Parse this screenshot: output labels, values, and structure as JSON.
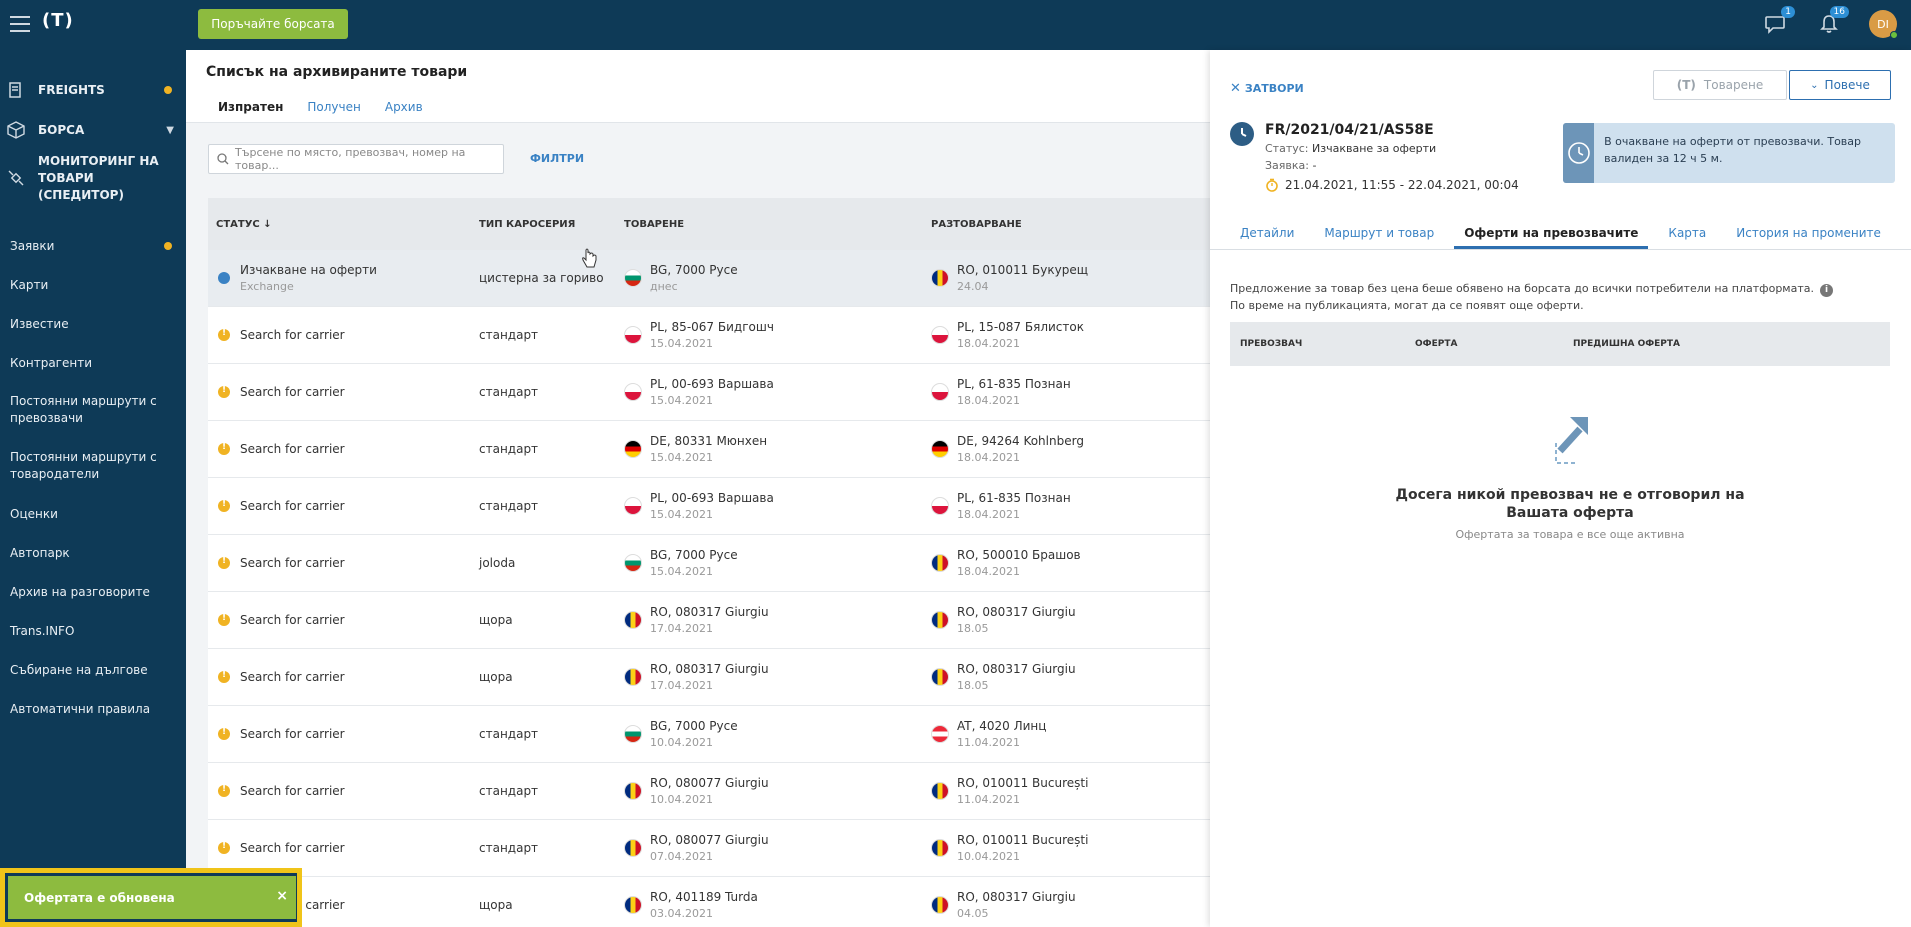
{
  "topbar": {
    "logo": "(T)",
    "action_button": "Поръчайте борсата",
    "messages_badge": "1",
    "notifications_badge": "16",
    "avatar_initials": "DI"
  },
  "sidebar": {
    "primary": [
      {
        "label": "FREIGHTS",
        "has_dot": true
      },
      {
        "label": "БОРСА",
        "has_chevron": true
      },
      {
        "label": "МОНИТОРИНГ НА ТОВАРИ (СПЕДИТОР)"
      }
    ],
    "links": [
      {
        "label": "Заявки",
        "has_dot": true
      },
      {
        "label": "Карти"
      },
      {
        "label": "Известие"
      },
      {
        "label": "Контрагенти"
      },
      {
        "label": "Постоянни маршрути с превозвачи"
      },
      {
        "label": "Постоянни маршрути с товародатели"
      },
      {
        "label": "Оценки"
      },
      {
        "label": "Автопарк"
      },
      {
        "label": "Архив на разговорите"
      },
      {
        "label": "Trans.INFO"
      },
      {
        "label": "Събиране на дългове"
      },
      {
        "label": "Автоматични правила"
      }
    ]
  },
  "main": {
    "title": "Списък на архивираните товари",
    "tabs": [
      "Изпратен",
      "Получен",
      "Архив"
    ],
    "search_placeholder": "Търсене по място, превозвач, номер на товар...",
    "filters_label": "ФИЛТРИ",
    "columns": [
      "СТАТУС ↓",
      "ТИП КАРОСЕРИЯ",
      "ТОВАРЕНЕ",
      "РАЗТОВАРВАНЕ"
    ],
    "rows": [
      {
        "status": "Изчакване на оферти",
        "status_sub": "Exchange",
        "status_type": "clock",
        "body": "цистерна за гориво",
        "load_flag": "bg",
        "load": "BG, 7000 Русе",
        "load_date": "днес",
        "unload_flag": "ro",
        "unload": "RO, 010011 Букурещ",
        "unload_date": "24.04"
      },
      {
        "status": "Search for carrier",
        "status_sub": "",
        "status_type": "warn",
        "body": "стандарт",
        "load_flag": "pl",
        "load": "PL, 85-067 Бидгошч",
        "load_date": "15.04.2021",
        "unload_flag": "pl",
        "unload": "PL, 15-087 Бялисток",
        "unload_date": "18.04.2021"
      },
      {
        "status": "Search for carrier",
        "status_sub": "",
        "status_type": "warn",
        "body": "стандарт",
        "load_flag": "pl",
        "load": "PL, 00-693 Варшава",
        "load_date": "15.04.2021",
        "unload_flag": "pl",
        "unload": "PL, 61-835 Познан",
        "unload_date": "18.04.2021"
      },
      {
        "status": "Search for carrier",
        "status_sub": "",
        "status_type": "warn",
        "body": "стандарт",
        "load_flag": "de",
        "load": "DE, 80331 Мюнхен",
        "load_date": "15.04.2021",
        "unload_flag": "de",
        "unload": "DE, 94264 Kohlnberg",
        "unload_date": "18.04.2021"
      },
      {
        "status": "Search for carrier",
        "status_sub": "",
        "status_type": "warn",
        "body": "стандарт",
        "load_flag": "pl",
        "load": "PL, 00-693 Варшава",
        "load_date": "15.04.2021",
        "unload_flag": "pl",
        "unload": "PL, 61-835 Познан",
        "unload_date": "18.04.2021"
      },
      {
        "status": "Search for carrier",
        "status_sub": "",
        "status_type": "warn",
        "body": "joloda",
        "load_flag": "bg",
        "load": "BG, 7000 Русе",
        "load_date": "15.04.2021",
        "unload_flag": "ro",
        "unload": "RO, 500010 Брашов",
        "unload_date": "18.04.2021"
      },
      {
        "status": "Search for carrier",
        "status_sub": "",
        "status_type": "warn",
        "body": "щора",
        "load_flag": "ro",
        "load": "RO, 080317 Giurgiu",
        "load_date": "17.04.2021",
        "unload_flag": "ro",
        "unload": "RO, 080317 Giurgiu",
        "unload_date": "18.05"
      },
      {
        "status": "Search for carrier",
        "status_sub": "",
        "status_type": "warn",
        "body": "щора",
        "load_flag": "ro",
        "load": "RO, 080317 Giurgiu",
        "load_date": "17.04.2021",
        "unload_flag": "ro",
        "unload": "RO, 080317 Giurgiu",
        "unload_date": "18.05"
      },
      {
        "status": "Search for carrier",
        "status_sub": "",
        "status_type": "warn",
        "body": "стандарт",
        "load_flag": "bg",
        "load": "BG, 7000 Русе",
        "load_date": "10.04.2021",
        "unload_flag": "at",
        "unload": "AT, 4020 Линц",
        "unload_date": "11.04.2021"
      },
      {
        "status": "Search for carrier",
        "status_sub": "",
        "status_type": "warn",
        "body": "стандарт",
        "load_flag": "ro",
        "load": "RO, 080077 Giurgiu",
        "load_date": "10.04.2021",
        "unload_flag": "ro",
        "unload": "RO, 010011 București",
        "unload_date": "11.04.2021"
      },
      {
        "status": "Search for carrier",
        "status_sub": "",
        "status_type": "warn",
        "body": "стандарт",
        "load_flag": "ro",
        "load": "RO, 080077 Giurgiu",
        "load_date": "07.04.2021",
        "unload_flag": "ro",
        "unload": "RO, 010011 București",
        "unload_date": "10.04.2021"
      },
      {
        "status": "Search for carrier",
        "status_sub": "",
        "status_type": "warn",
        "body": "щора",
        "load_flag": "ro",
        "load": "RO, 401189 Turda",
        "load_date": "03.04.2021",
        "unload_flag": "ro",
        "unload": "RO, 080317 Giurgiu",
        "unload_date": "04.05"
      }
    ]
  },
  "panel": {
    "close_label": "ЗАТВОРИ",
    "load_button": "Товарене",
    "more_button": "Повече",
    "freight_id": "FR/2021/04/21/AS58E",
    "status_label": "Статус:",
    "status_value": "Изчакване за оферти",
    "order_label": "Заявка:",
    "order_value": "-",
    "dates": "21.04.2021, 11:55 - 22.04.2021, 00:04",
    "info_text": "В очакване на оферти от превозвачи. Товар валиден за 12 ч 5 м.",
    "tabs": [
      "Детайли",
      "Маршрут и товар",
      "Оферти на превозвачите",
      "Карта",
      "История на промените"
    ],
    "desc_line1": "Предложение за товар без цена беше обявено на борсата до всички потребители на платформата.",
    "desc_line2": "По време на публикацията, могат да се появят още оферти.",
    "columns": [
      "ПРЕВОЗВАЧ",
      "ОФЕРТА",
      "ПРЕДИШНА ОФЕРТА"
    ],
    "empty_title": "Досега никой превозвач не е отговорил на Вашата оферта",
    "empty_sub": "Офертата за товара е все още активна"
  },
  "toast": {
    "message": "Офертата е обновена",
    "close": "×"
  },
  "colors": {
    "navy": "#0e3a57",
    "green": "#8dbb3f",
    "accent_blue": "#2d6fb0",
    "warn": "#f0b323",
    "toast_border": "#f0c419"
  }
}
